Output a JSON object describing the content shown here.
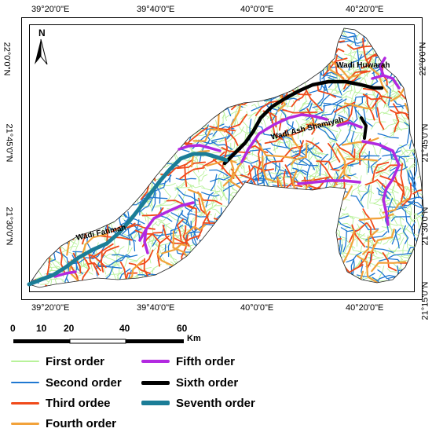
{
  "coordinates": {
    "top_lon": [
      "39°20'0\"E",
      "39°40'0\"E",
      "40°0'0\"E",
      "40°20'0\"E"
    ],
    "bottom_lon": [
      "39°20'0\"E",
      "39°40'0\"E",
      "40°0'0\"E",
      "40°20'0\"E"
    ],
    "left_lat": [
      "22°0'0\"N",
      "21°45'0\"N",
      "21°30'0\"N"
    ],
    "right_lat": [
      "22°0'0\"N",
      "21°45'0\"N",
      "21°30'0\"N",
      "21°15'0\"N"
    ]
  },
  "north_arrow": {
    "label": "N",
    "icon": "north-arrow-icon"
  },
  "wadi_labels": {
    "huwarah": "Wadi Huwarah",
    "shamiyah": "Wadi Ash Shamiyah",
    "fatimah": "Wadi Fatimah"
  },
  "scale_bar": {
    "ticks": [
      "0",
      "10",
      "20",
      "40",
      "60"
    ],
    "unit": "Km"
  },
  "legend": [
    {
      "label": "First order",
      "color": "#b8f29a"
    },
    {
      "label": "Second order",
      "color": "#1f78d1"
    },
    {
      "label": "Third ordee",
      "color": "#f04a1a"
    },
    {
      "label": "Fourth order",
      "color": "#f2a23a"
    },
    {
      "label": "Fifth order",
      "color": "#b229e0"
    },
    {
      "label": "Sixth order",
      "color": "#000000"
    },
    {
      "label": "Seventh order",
      "color": "#1b7d97"
    }
  ]
}
